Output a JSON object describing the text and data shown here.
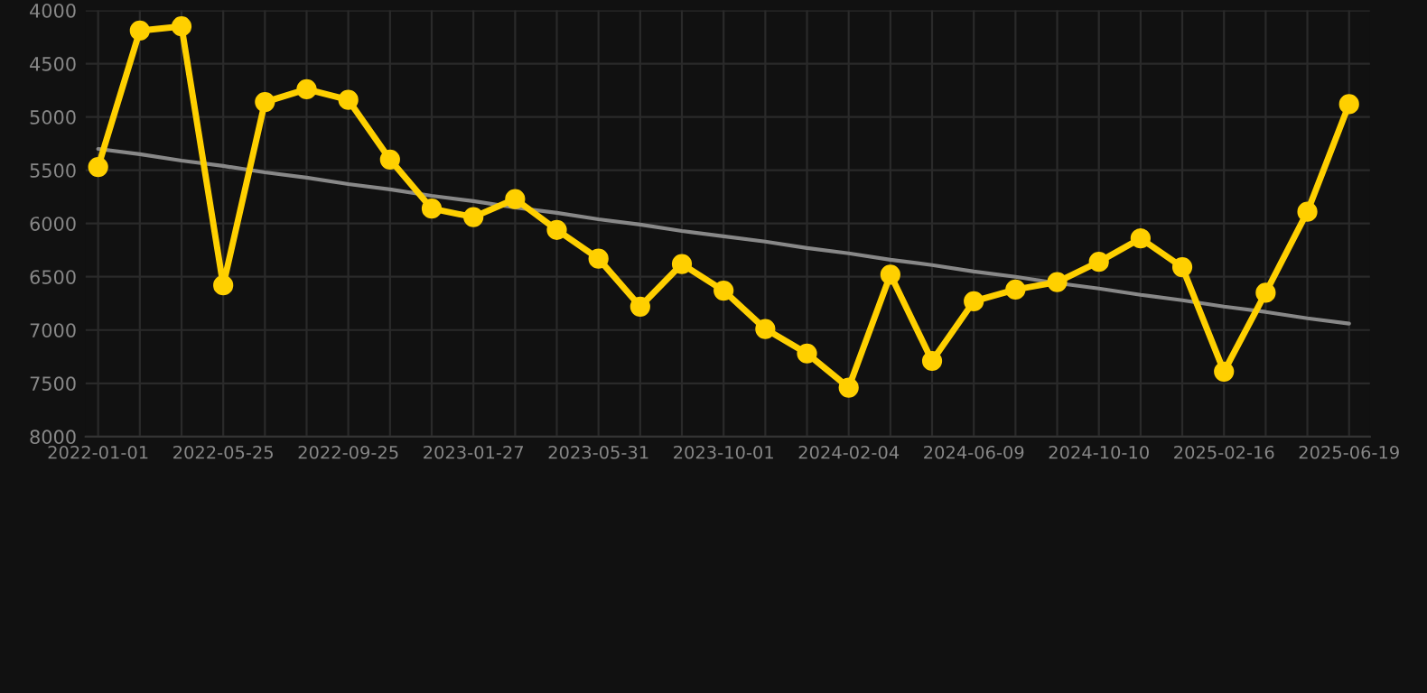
{
  "chart_data": {
    "type": "line",
    "categories": [
      "2022-01-01",
      null,
      null,
      "2022-05-25",
      null,
      null,
      "2022-09-25",
      null,
      null,
      "2023-01-27",
      null,
      null,
      "2023-05-31",
      null,
      null,
      "2023-10-01",
      null,
      null,
      "2024-02-04",
      null,
      null,
      "2024-06-09",
      null,
      null,
      "2024-10-10",
      null,
      null,
      "2025-02-16",
      null,
      null,
      "2025-06-19"
    ],
    "series": [
      {
        "color": "#ffd000",
        "marker": "circle",
        "values": [
          5470,
          4190,
          4150,
          6580,
          4860,
          4740,
          4840,
          5400,
          5860,
          5940,
          5770,
          6060,
          6330,
          6780,
          6380,
          6630,
          6990,
          7220,
          7540,
          6480,
          7290,
          6730,
          6620,
          6550,
          6360,
          6140,
          6410,
          7390,
          6650,
          5890,
          4880
        ]
      },
      {
        "color": "#888888",
        "marker": "none",
        "values": [
          5300,
          5350,
          5410,
          5460,
          5520,
          5570,
          5630,
          5680,
          5740,
          5790,
          5850,
          5900,
          5960,
          6010,
          6070,
          6120,
          6170,
          6230,
          6280,
          6340,
          6390,
          6450,
          6500,
          6560,
          6610,
          6670,
          6720,
          6780,
          6830,
          6890,
          6940
        ]
      }
    ],
    "ylim": [
      8000,
      4000
    ],
    "yticks": [
      4000,
      4500,
      5000,
      5500,
      6000,
      6500,
      7000,
      7500,
      8000
    ],
    "grid": true,
    "line_style": "solid"
  }
}
